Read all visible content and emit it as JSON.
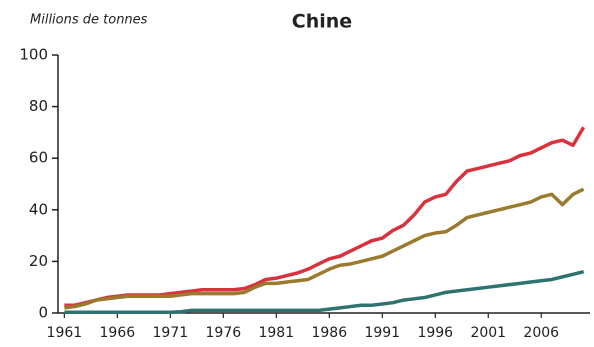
{
  "chart_data": {
    "type": "line",
    "title": "Chine",
    "ylabel": "Millions de tonnes",
    "x": [
      1961,
      1962,
      1963,
      1964,
      1965,
      1966,
      1967,
      1968,
      1969,
      1970,
      1971,
      1972,
      1973,
      1974,
      1975,
      1976,
      1977,
      1978,
      1979,
      1980,
      1981,
      1982,
      1983,
      1984,
      1985,
      1986,
      1987,
      1988,
      1989,
      1990,
      1991,
      1992,
      1993,
      1994,
      1995,
      1996,
      1997,
      1998,
      1999,
      2000,
      2001,
      2002,
      2003,
      2004,
      2005,
      2006,
      2007,
      2008,
      2009,
      2010
    ],
    "series": [
      {
        "color": "#d9323f",
        "values": [
          3,
          3,
          4,
          5,
          6,
          6.5,
          7,
          7,
          7,
          7,
          7.5,
          8,
          8.5,
          9,
          9,
          9,
          9,
          9.5,
          11,
          13,
          13.5,
          14.5,
          15.5,
          17,
          19,
          21,
          22,
          24,
          26,
          28,
          29,
          32,
          34,
          38,
          43,
          45,
          46,
          51,
          55,
          56,
          57,
          58,
          59,
          61,
          62,
          64,
          66,
          67,
          65,
          72
        ]
      },
      {
        "color": "#9b7a2e",
        "values": [
          2,
          2.5,
          3.5,
          5,
          5.5,
          6,
          6.5,
          6.5,
          6.5,
          6.5,
          6.5,
          7,
          7.5,
          7.5,
          7.5,
          7.5,
          7.5,
          8,
          10,
          11.5,
          11.5,
          12,
          12.5,
          13,
          15,
          17,
          18.5,
          19,
          20,
          21,
          22,
          24,
          26,
          28,
          30,
          31,
          31.5,
          34,
          37,
          38,
          39,
          40,
          41,
          42,
          43,
          45,
          46,
          42,
          46,
          48
        ]
      },
      {
        "color": "#2e7370",
        "values": [
          0.3,
          0.3,
          0.3,
          0.3,
          0.3,
          0.3,
          0.3,
          0.3,
          0.3,
          0.3,
          0.3,
          0.5,
          1,
          1,
          1,
          1,
          1,
          1,
          1,
          1,
          1,
          1,
          1,
          1,
          1,
          1.5,
          2,
          2.5,
          3,
          3,
          3.5,
          4,
          5,
          5.5,
          6,
          7,
          8,
          8.5,
          9,
          9.5,
          10,
          10.5,
          11,
          11.5,
          12,
          12.5,
          13,
          14,
          15,
          16
        ]
      }
    ],
    "xlim": [
      1960.4,
      2010.6
    ],
    "xticks": [
      1961,
      1966,
      1971,
      1976,
      1981,
      1986,
      1991,
      1996,
      2001,
      2006
    ],
    "ylim": [
      0,
      100
    ],
    "yticks": [
      0,
      20,
      40,
      60,
      80,
      100
    ],
    "grid": false
  }
}
